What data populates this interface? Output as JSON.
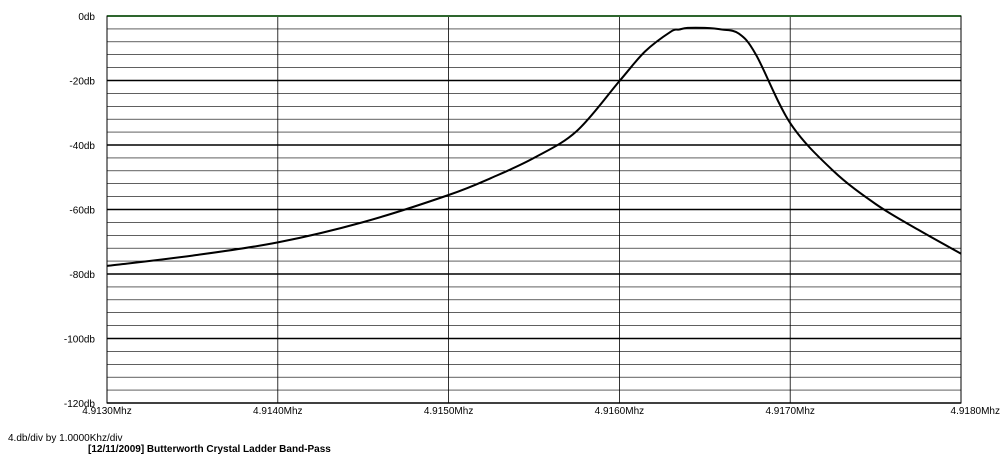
{
  "chart_data": {
    "type": "line",
    "title": "[12/11/2009] Butterworth Crystal Ladder Band-Pass",
    "scale_text": "4.db/div by 1.0000Khz/div",
    "xlim": [
      4.913,
      4.918
    ],
    "ylim": [
      -120,
      0
    ],
    "x_ticks": [
      4.913,
      4.914,
      4.915,
      4.916,
      4.917,
      4.918
    ],
    "x_tick_labels": [
      "4.9130Mhz",
      "4.9140Mhz",
      "4.9150Mhz",
      "4.9160Mhz",
      "4.9170Mhz",
      "4.9180Mhz"
    ],
    "y_ticks": [
      0,
      -20,
      -40,
      -60,
      -80,
      -100,
      -120
    ],
    "y_tick_labels": [
      "0db",
      "-20db",
      "-40db",
      "-60db",
      "-80db",
      "-100db",
      "-120db"
    ],
    "y_minor_step": 4,
    "grid": true,
    "colors": {
      "curve": "#000000",
      "grid": "#000000",
      "ref_line": "#5dcc5d"
    },
    "series": [
      {
        "x": [
          4.913,
          4.9135,
          4.914,
          4.9145,
          4.915,
          4.91525,
          4.9155,
          4.91575,
          4.916,
          4.91615,
          4.9163,
          4.91635,
          4.9164,
          4.9165,
          4.9166,
          4.9167,
          4.9168,
          4.917,
          4.91725,
          4.9175,
          4.91775,
          4.918
        ],
        "y": [
          -77.5,
          -74.3,
          -70.2,
          -63.9,
          -55.5,
          -50.2,
          -44.0,
          -35.7,
          -20.2,
          -11.0,
          -4.9,
          -4.2,
          -3.7,
          -3.7,
          -4.2,
          -5.5,
          -12.0,
          -33.2,
          -47.9,
          -58.3,
          -66.3,
          -73.7
        ]
      }
    ]
  }
}
